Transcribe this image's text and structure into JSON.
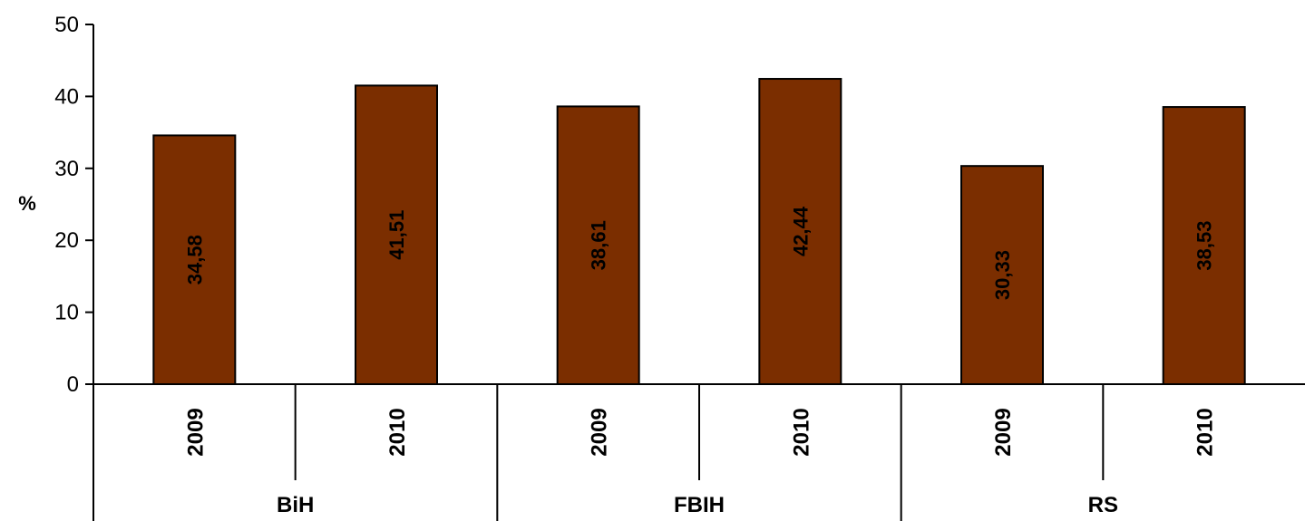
{
  "chart_data": {
    "type": "bar",
    "ylabel": "%",
    "ylim": [
      0,
      50
    ],
    "yticks": [
      0,
      10,
      20,
      30,
      40,
      50
    ],
    "groups": [
      {
        "name": "BiH",
        "categories": [
          "2009",
          "2010"
        ],
        "values": [
          34.58,
          41.51
        ],
        "labels": [
          "34,58",
          "41,51"
        ]
      },
      {
        "name": "FBIH",
        "categories": [
          "2009",
          "2010"
        ],
        "values": [
          38.61,
          42.44
        ],
        "labels": [
          "38,61",
          "42,44"
        ]
      },
      {
        "name": "RS",
        "categories": [
          "2009",
          "2010"
        ],
        "values": [
          30.33,
          38.53
        ],
        "labels": [
          "30,33",
          "38,53"
        ]
      }
    ],
    "bar_color": "#7b2e00",
    "grid": false,
    "legend": "none"
  }
}
